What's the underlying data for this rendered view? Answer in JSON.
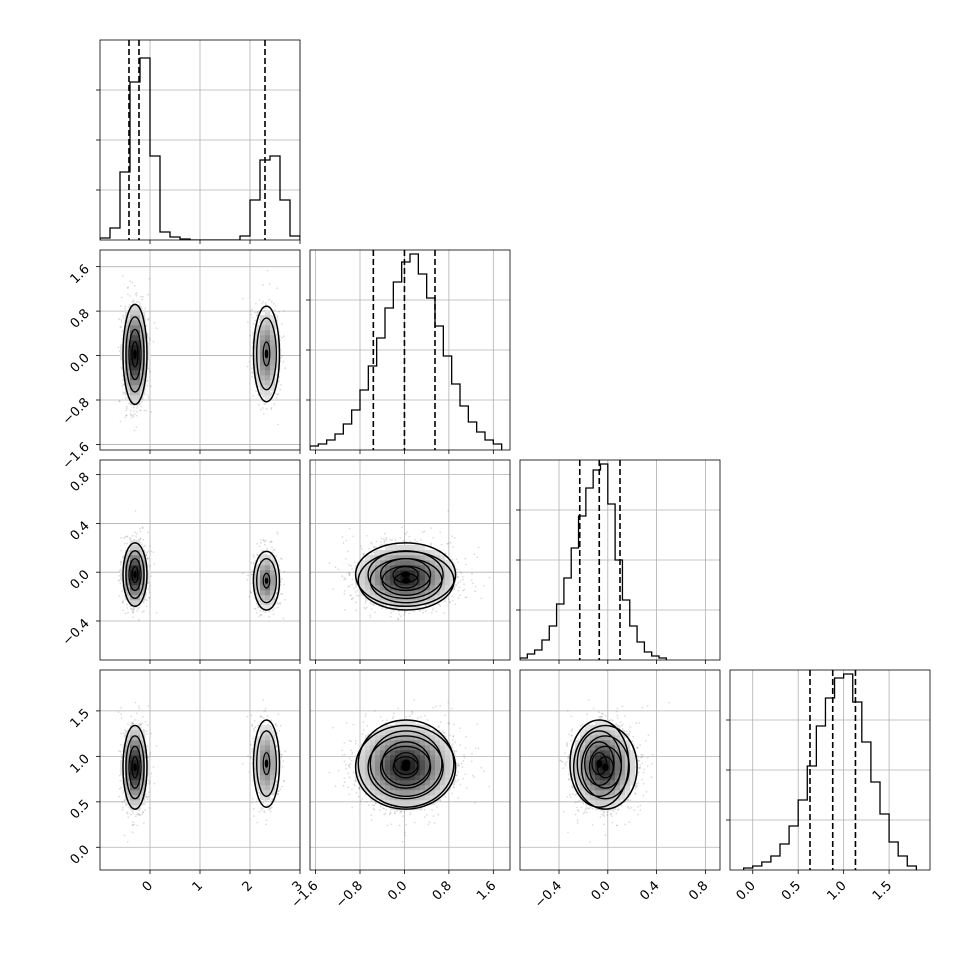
{
  "chart_data": {
    "type": "corner",
    "dims": 4,
    "ranges": [
      [
        -1.0,
        3.0
      ],
      [
        -1.7,
        1.9
      ],
      [
        -0.72,
        0.92
      ],
      [
        -0.25,
        1.95
      ]
    ],
    "ticks": [
      {
        "values": [
          0,
          1,
          2,
          3
        ],
        "labels": [
          "0",
          "1",
          "2",
          "3"
        ]
      },
      {
        "values": [
          -1.6,
          -0.8,
          0.0,
          0.8,
          1.6
        ],
        "labels": [
          "−1.6",
          "−0.8",
          "0.0",
          "0.8",
          "1.6"
        ]
      },
      {
        "values": [
          -0.4,
          0.0,
          0.4,
          0.8
        ],
        "labels": [
          "−0.4",
          "0.0",
          "0.4",
          "0.8"
        ]
      },
      {
        "values": [
          0.0,
          0.5,
          1.0,
          1.5
        ],
        "labels": [
          "0.0",
          "0.5",
          "1.0",
          "1.5"
        ]
      }
    ],
    "histograms": [
      {
        "bins": [
          -1.0,
          -0.8,
          -0.6,
          -0.4,
          -0.2,
          0.0,
          0.2,
          0.4,
          0.6,
          0.8,
          1.0,
          1.2,
          1.4,
          1.6,
          1.8,
          2.0,
          2.2,
          2.4,
          2.6,
          2.8,
          3.0
        ],
        "counts": [
          0.01,
          0.06,
          0.34,
          0.79,
          0.91,
          0.42,
          0.04,
          0.015,
          0.005,
          0,
          0,
          0,
          0,
          0,
          0.02,
          0.2,
          0.4,
          0.42,
          0.2,
          0.02
        ],
        "quantiles": [
          -0.42,
          -0.22,
          2.3
        ]
      },
      {
        "bins": [
          -1.7,
          -1.55,
          -1.4,
          -1.25,
          -1.1,
          -0.95,
          -0.8,
          -0.65,
          -0.5,
          -0.35,
          -0.2,
          -0.05,
          0.1,
          0.25,
          0.4,
          0.55,
          0.7,
          0.85,
          1.0,
          1.15,
          1.3,
          1.45,
          1.6,
          1.75
        ],
        "counts": [
          0.02,
          0.03,
          0.05,
          0.08,
          0.13,
          0.2,
          0.3,
          0.42,
          0.56,
          0.71,
          0.84,
          0.94,
          0.98,
          0.88,
          0.76,
          0.62,
          0.47,
          0.33,
          0.22,
          0.14,
          0.09,
          0.05,
          0.03
        ],
        "quantiles": [
          -0.56,
          0.0,
          0.55
        ]
      },
      {
        "bins": [
          -0.72,
          -0.66,
          -0.6,
          -0.54,
          -0.48,
          -0.42,
          -0.36,
          -0.3,
          -0.24,
          -0.18,
          -0.12,
          -0.06,
          0.0,
          0.06,
          0.12,
          0.18,
          0.24,
          0.3,
          0.36,
          0.42,
          0.48
        ],
        "counts": [
          0.01,
          0.03,
          0.05,
          0.1,
          0.17,
          0.28,
          0.41,
          0.56,
          0.72,
          0.86,
          0.95,
          0.98,
          0.78,
          0.5,
          0.3,
          0.17,
          0.09,
          0.04,
          0.02,
          0.01
        ],
        "quantiles": [
          -0.23,
          -0.07,
          0.1
        ]
      },
      {
        "bins": [
          -0.1,
          0.0,
          0.1,
          0.2,
          0.3,
          0.4,
          0.5,
          0.6,
          0.7,
          0.8,
          0.9,
          1.0,
          1.1,
          1.2,
          1.3,
          1.4,
          1.5,
          1.6,
          1.7,
          1.8
        ],
        "counts": [
          0.01,
          0.02,
          0.04,
          0.07,
          0.13,
          0.22,
          0.35,
          0.52,
          0.72,
          0.86,
          0.96,
          0.98,
          0.84,
          0.64,
          0.44,
          0.28,
          0.14,
          0.07,
          0.02
        ],
        "quantiles": [
          0.63,
          0.88,
          1.13
        ]
      }
    ],
    "modes": [
      {
        "mean": [
          -0.3,
          0.02,
          -0.02,
          0.88
        ],
        "sd": [
          0.12,
          0.45,
          0.13,
          0.23
        ],
        "weight": 0.62
      },
      {
        "mean": [
          2.33,
          0.03,
          -0.07,
          0.92
        ],
        "sd": [
          0.13,
          0.43,
          0.12,
          0.24
        ],
        "weight": 0.38
      }
    ],
    "grid": true
  }
}
